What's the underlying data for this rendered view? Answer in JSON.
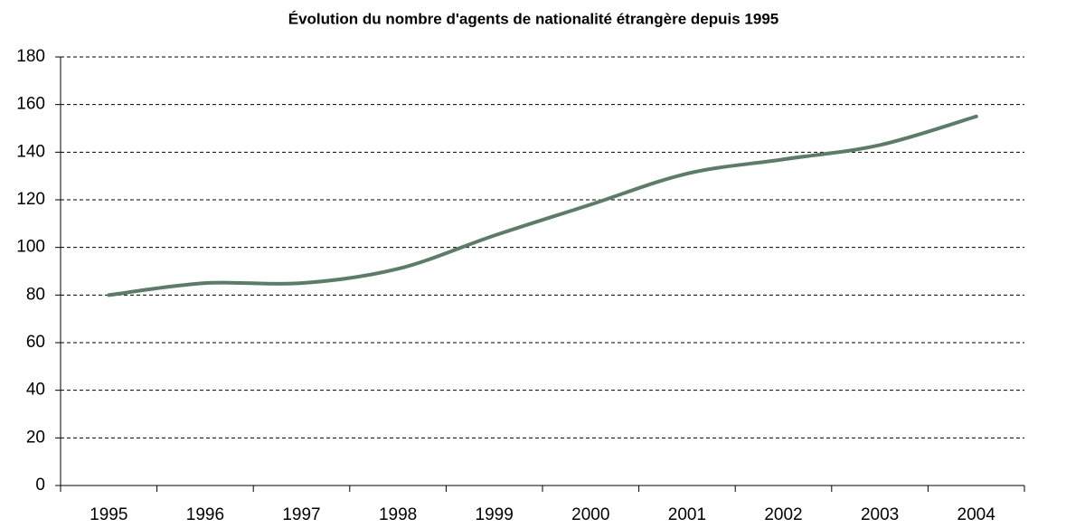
{
  "chart_data": {
    "type": "line",
    "title": "Évolution du nombre d'agents de nationalité étrangère depuis 1995",
    "categories": [
      "1995",
      "1996",
      "1997",
      "1998",
      "1999",
      "2000",
      "2001",
      "2002",
      "2003",
      "2004"
    ],
    "series": [
      {
        "name": "Agents de nationalité étrangère",
        "color": "#5b7d68",
        "values": [
          80,
          85,
          85,
          91,
          105,
          118,
          131,
          137,
          143,
          155
        ]
      }
    ],
    "ylim": [
      0,
      180
    ],
    "yticks": [
      0,
      20,
      40,
      60,
      80,
      100,
      120,
      140,
      160,
      180
    ],
    "grid": true,
    "smooth": true
  }
}
